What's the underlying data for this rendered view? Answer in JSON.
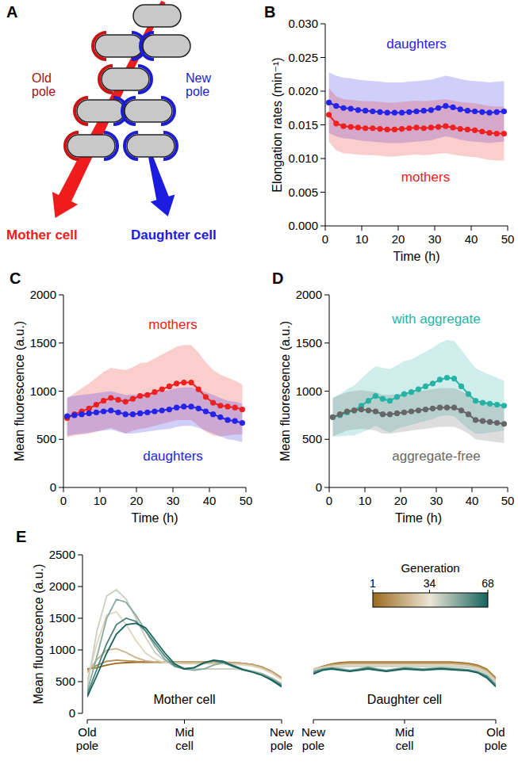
{
  "diagram": {
    "panel_label": "A",
    "old_pole": "Old pole",
    "new_pole": "New pole",
    "mother_cell": "Mother cell",
    "daughter_cell": "Daughter cell"
  },
  "chart_data": [
    {
      "type": "line",
      "panel_label": "B",
      "x_label": "Time (h)",
      "y_label": "Elongation rates (min⁻¹)",
      "marker": "circle",
      "x": [
        1,
        3,
        5,
        7,
        9,
        11,
        13,
        15,
        17,
        19,
        21,
        23,
        25,
        27,
        29,
        31,
        33,
        35,
        37,
        39,
        41,
        43,
        45,
        47,
        49
      ],
      "xlim": [
        0,
        50
      ],
      "xticks": [
        0,
        10,
        20,
        30,
        40,
        50
      ],
      "ylim": [
        0,
        0.03
      ],
      "yticks": [
        {
          "value": 0,
          "label": "0.000"
        },
        {
          "value": 0.005,
          "label": "0.005"
        },
        {
          "value": 0.01,
          "label": "0.010"
        },
        {
          "value": 0.015,
          "label": "0.015"
        },
        {
          "value": 0.02,
          "label": "0.020"
        },
        {
          "value": 0.025,
          "label": "0.025"
        },
        {
          "value": 0.03,
          "label": "0.030"
        }
      ],
      "series": [
        {
          "name": "daughters",
          "color": "#2424e8",
          "values": [
            0.0183,
            0.0178,
            0.0175,
            0.0174,
            0.0172,
            0.0171,
            0.017,
            0.0169,
            0.0168,
            0.0168,
            0.0168,
            0.0169,
            0.017,
            0.0171,
            0.0172,
            0.0175,
            0.0178,
            0.0176,
            0.0173,
            0.0171,
            0.017,
            0.0169,
            0.0168,
            0.0169,
            0.017
          ],
          "sd": [
            0.0045,
            0.0045,
            0.0045,
            0.0045,
            0.0045,
            0.0045,
            0.0045,
            0.0045,
            0.0045,
            0.0045,
            0.0045,
            0.0045,
            0.0045,
            0.0045,
            0.0045,
            0.0045,
            0.0045,
            0.0045,
            0.0045,
            0.0045,
            0.0045,
            0.0045,
            0.0045,
            0.0045,
            0.0045
          ]
        },
        {
          "name": "mothers",
          "color": "#ee2020",
          "values": [
            0.0165,
            0.0152,
            0.0148,
            0.0147,
            0.0146,
            0.0145,
            0.0145,
            0.0144,
            0.0143,
            0.0143,
            0.0144,
            0.0145,
            0.0146,
            0.0145,
            0.0146,
            0.0147,
            0.0148,
            0.0146,
            0.0144,
            0.0143,
            0.0142,
            0.014,
            0.0138,
            0.0137,
            0.0137
          ],
          "sd": [
            0.004,
            0.004,
            0.004,
            0.004,
            0.004,
            0.004,
            0.004,
            0.004,
            0.004,
            0.004,
            0.004,
            0.004,
            0.004,
            0.004,
            0.004,
            0.004,
            0.004,
            0.004,
            0.004,
            0.004,
            0.004,
            0.004,
            0.004,
            0.004,
            0.004
          ]
        }
      ]
    },
    {
      "type": "line",
      "panel_label": "C",
      "x_label": "Time (h)",
      "y_label": "Mean fluorescence (a.u.)",
      "marker": "circle",
      "x": [
        1,
        3,
        5,
        7,
        9,
        11,
        13,
        15,
        17,
        19,
        21,
        23,
        25,
        27,
        29,
        31,
        33,
        35,
        37,
        39,
        41,
        43,
        45,
        47,
        49
      ],
      "xlim": [
        0,
        50
      ],
      "xticks": [
        0,
        10,
        20,
        30,
        40,
        50
      ],
      "ylim": [
        0,
        2000
      ],
      "yticks": [
        0,
        500,
        1000,
        1500,
        2000
      ],
      "series": [
        {
          "name": "mothers",
          "color": "#ee2020",
          "values": [
            720,
            760,
            790,
            820,
            860,
            900,
            930,
            910,
            890,
            920,
            950,
            960,
            990,
            1020,
            1050,
            1080,
            1090,
            1090,
            1020,
            940,
            880,
            850,
            840,
            830,
            810
          ],
          "sd": [
            200,
            220,
            240,
            260,
            280,
            300,
            310,
            320,
            330,
            330,
            340,
            340,
            350,
            360,
            370,
            380,
            390,
            390,
            380,
            360,
            340,
            320,
            300,
            280,
            260
          ]
        },
        {
          "name": "daughters",
          "color": "#2424e8",
          "values": [
            740,
            750,
            760,
            770,
            780,
            790,
            800,
            780,
            760,
            760,
            770,
            780,
            790,
            800,
            810,
            830,
            840,
            840,
            820,
            790,
            760,
            730,
            700,
            690,
            670
          ],
          "sd": [
            200,
            200,
            200,
            200,
            200,
            200,
            200,
            200,
            200,
            200,
            200,
            200,
            200,
            200,
            200,
            200,
            200,
            200,
            200,
            200,
            200,
            200,
            200,
            200,
            200
          ]
        }
      ]
    },
    {
      "type": "line",
      "panel_label": "D",
      "x_label": "Time (h)",
      "y_label": "Mean fluorescence (a.u.)",
      "marker": "circle",
      "x": [
        1,
        3,
        5,
        7,
        9,
        11,
        13,
        15,
        17,
        19,
        21,
        23,
        25,
        27,
        29,
        31,
        33,
        35,
        37,
        39,
        41,
        43,
        45,
        47,
        49
      ],
      "xlim": [
        0,
        50
      ],
      "xticks": [
        0,
        10,
        20,
        30,
        40,
        50
      ],
      "ylim": [
        0,
        2000
      ],
      "yticks": [
        0,
        500,
        1000,
        1500,
        2000
      ],
      "series": [
        {
          "name": "with aggregate",
          "color": "#26b3a6",
          "values": [
            730,
            750,
            780,
            800,
            850,
            900,
            950,
            920,
            900,
            940,
            970,
            990,
            1020,
            1050,
            1080,
            1120,
            1140,
            1130,
            1050,
            970,
            900,
            880,
            870,
            860,
            850
          ],
          "sd": [
            200,
            220,
            240,
            260,
            280,
            300,
            310,
            320,
            330,
            330,
            340,
            340,
            350,
            360,
            370,
            380,
            390,
            390,
            380,
            360,
            340,
            320,
            300,
            280,
            260
          ]
        },
        {
          "name": "aggregate-free",
          "color": "#666666",
          "values": [
            730,
            760,
            790,
            800,
            810,
            800,
            790,
            760,
            760,
            770,
            780,
            790,
            800,
            810,
            820,
            830,
            830,
            830,
            800,
            760,
            700,
            690,
            680,
            670,
            660
          ],
          "sd": [
            200,
            200,
            200,
            200,
            200,
            200,
            200,
            200,
            200,
            200,
            200,
            200,
            200,
            200,
            200,
            200,
            200,
            200,
            200,
            200,
            200,
            200,
            200,
            200,
            200
          ]
        }
      ]
    },
    {
      "type": "line",
      "panel_label": "E",
      "y_label": "Mean fluorescence (a.u.)",
      "x": [
        0,
        0.05,
        0.1,
        0.15,
        0.2,
        0.25,
        0.3,
        0.35,
        0.4,
        0.45,
        0.5,
        0.55,
        0.6,
        0.65,
        0.7,
        0.75,
        0.8,
        0.85,
        0.9,
        0.95,
        1
      ],
      "xlim": [
        0,
        1
      ],
      "ylim": [
        0,
        2500
      ],
      "yticks": [
        0,
        500,
        1000,
        1500,
        2000,
        2500
      ],
      "colorbar": {
        "title": "Generation",
        "range": [
          1,
          68
        ],
        "ticks": [
          1,
          34,
          68
        ],
        "colors": [
          "#9c6a1e",
          "#ebe6d6",
          "#15625d"
        ]
      },
      "panels": [
        {
          "annotation": "Mother cell",
          "xticks": [
            {
              "value": 0,
              "label": "Old pole"
            },
            {
              "value": 0.5,
              "label": "Mid cell"
            },
            {
              "value": 1,
              "label": "New pole"
            }
          ],
          "series": [
            {
              "generation": 1,
              "values": [
                700,
                720,
                760,
                790,
                800,
                805,
                805,
                805,
                805,
                805,
                805,
                805,
                805,
                805,
                805,
                800,
                790,
                770,
                730,
                660,
                560
              ]
            },
            {
              "generation": 10,
              "values": [
                680,
                760,
                820,
                840,
                830,
                820,
                815,
                810,
                810,
                810,
                810,
                810,
                810,
                805,
                805,
                800,
                790,
                770,
                730,
                660,
                560
              ]
            },
            {
              "generation": 20,
              "values": [
                640,
                850,
                1000,
                1020,
                960,
                880,
                830,
                810,
                800,
                800,
                800,
                800,
                800,
                800,
                800,
                795,
                785,
                765,
                720,
                650,
                550
              ]
            },
            {
              "generation": 30,
              "values": [
                520,
                1100,
                1550,
                1600,
                1400,
                1150,
                950,
                850,
                800,
                790,
                780,
                780,
                780,
                780,
                780,
                775,
                765,
                745,
                700,
                630,
                530
              ]
            },
            {
              "generation": 40,
              "values": [
                420,
                1300,
                1850,
                1950,
                1800,
                1500,
                1200,
                950,
                830,
                760,
                720,
                700,
                700,
                700,
                700,
                700,
                690,
                670,
                630,
                560,
                470
              ]
            },
            {
              "generation": 50,
              "values": [
                350,
                900,
                1500,
                1800,
                1750,
                1550,
                1300,
                1050,
                850,
                740,
                700,
                680,
                700,
                760,
                800,
                760,
                700,
                660,
                620,
                550,
                460
              ]
            },
            {
              "generation": 60,
              "values": [
                300,
                700,
                1100,
                1400,
                1500,
                1450,
                1300,
                1100,
                900,
                750,
                700,
                720,
                790,
                830,
                800,
                740,
                690,
                650,
                600,
                530,
                440
              ]
            },
            {
              "generation": 68,
              "values": [
                260,
                600,
                950,
                1250,
                1400,
                1420,
                1350,
                1150,
                950,
                780,
                700,
                720,
                800,
                840,
                820,
                750,
                690,
                650,
                600,
                520,
                420
              ]
            }
          ]
        },
        {
          "annotation": "Daughter cell",
          "xticks": [
            {
              "value": 0,
              "label": "New pole"
            },
            {
              "value": 0.5,
              "label": "Mid cell"
            },
            {
              "value": 1,
              "label": "Old pole"
            }
          ],
          "series": [
            {
              "generation": 1,
              "values": [
                680,
                740,
                780,
                800,
                810,
                810,
                810,
                810,
                810,
                810,
                810,
                810,
                810,
                810,
                810,
                810,
                800,
                790,
                760,
                700,
                560
              ]
            },
            {
              "generation": 10,
              "values": [
                690,
                740,
                770,
                790,
                800,
                800,
                800,
                800,
                800,
                800,
                800,
                800,
                800,
                800,
                800,
                800,
                790,
                780,
                750,
                690,
                550
              ]
            },
            {
              "generation": 20,
              "values": [
                700,
                730,
                760,
                770,
                780,
                780,
                780,
                780,
                780,
                780,
                780,
                780,
                780,
                780,
                780,
                780,
                770,
                760,
                730,
                670,
                530
              ]
            },
            {
              "generation": 30,
              "values": [
                690,
                720,
                740,
                750,
                760,
                760,
                760,
                760,
                760,
                760,
                760,
                760,
                760,
                760,
                760,
                760,
                750,
                740,
                710,
                650,
                510
              ]
            },
            {
              "generation": 40,
              "values": [
                680,
                700,
                720,
                730,
                740,
                740,
                740,
                740,
                740,
                740,
                740,
                740,
                740,
                740,
                740,
                740,
                730,
                720,
                690,
                630,
                490
              ]
            },
            {
              "generation": 50,
              "values": [
                660,
                700,
                720,
                700,
                680,
                700,
                730,
                700,
                680,
                700,
                720,
                710,
                700,
                710,
                720,
                710,
                700,
                690,
                660,
                600,
                460
              ]
            },
            {
              "generation": 60,
              "values": [
                640,
                690,
                710,
                690,
                670,
                690,
                720,
                690,
                670,
                690,
                710,
                700,
                690,
                700,
                710,
                700,
                690,
                680,
                650,
                580,
                440
              ]
            },
            {
              "generation": 68,
              "values": [
                620,
                680,
                700,
                680,
                660,
                680,
                700,
                680,
                660,
                680,
                700,
                690,
                680,
                690,
                700,
                690,
                680,
                670,
                640,
                560,
                420
              ]
            }
          ]
        }
      ]
    }
  ]
}
